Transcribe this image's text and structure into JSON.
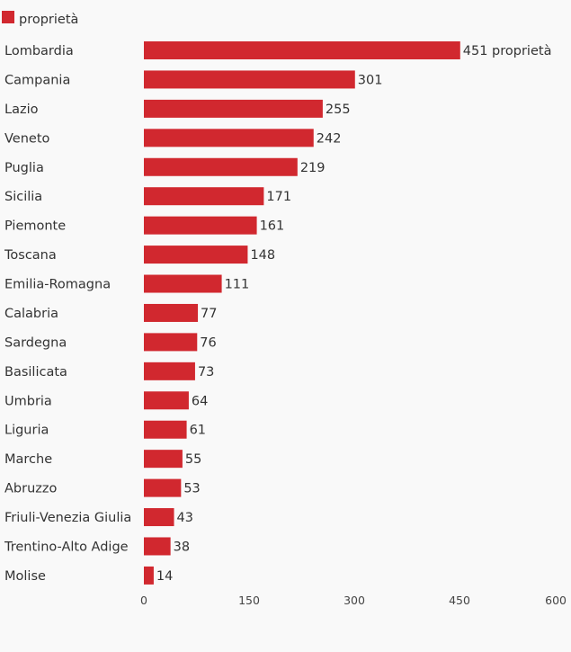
{
  "legend": {
    "label": "proprietà",
    "color": "#d1282f"
  },
  "chart_data": {
    "type": "bar",
    "orientation": "horizontal",
    "series": [
      {
        "name": "proprietà",
        "color": "#d1282f",
        "values": [
          451,
          301,
          255,
          242,
          219,
          171,
          161,
          148,
          111,
          77,
          76,
          73,
          64,
          61,
          55,
          53,
          43,
          38,
          14
        ]
      }
    ],
    "categories": [
      "Lombardia",
      "Campania",
      "Lazio",
      "Veneto",
      "Puglia",
      "Sicilia",
      "Piemonte",
      "Toscana",
      "Emilia-Romagna",
      "Calabria",
      "Sardegna",
      "Basilicata",
      "Umbria",
      "Liguria",
      "Marche",
      "Abruzzo",
      "Friuli-Venezia Giulia",
      "Trentino-Alto Adige",
      "Molise"
    ],
    "value_labels": [
      "451 proprietà",
      "301",
      "255",
      "242",
      "219",
      "171",
      "161",
      "148",
      "111",
      "77",
      "76",
      "73",
      "64",
      "61",
      "55",
      "53",
      "43",
      "38",
      "14"
    ],
    "xlim": [
      0,
      600
    ],
    "x_ticks": [
      0,
      150,
      300,
      450,
      600
    ],
    "x_tick_labels": [
      "0",
      "150",
      "300",
      "450",
      "600"
    ],
    "grid": false,
    "legend_position": "top-left",
    "title": "",
    "xlabel": "",
    "ylabel": ""
  }
}
